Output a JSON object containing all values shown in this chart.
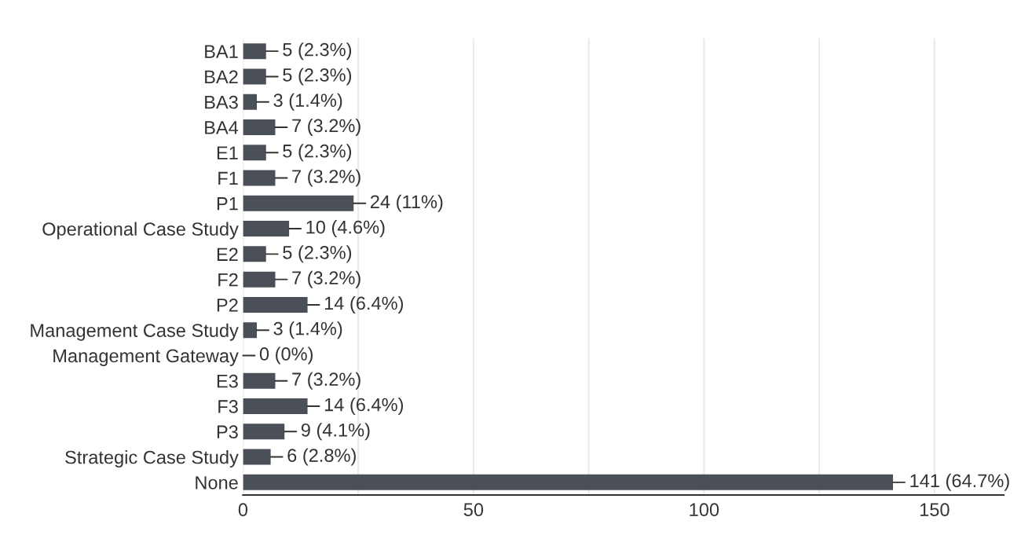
{
  "chart_data": {
    "type": "bar",
    "orientation": "horizontal",
    "categories": [
      "BA1",
      "BA2",
      "BA3",
      "BA4",
      "E1",
      "F1",
      "P1",
      "Operational Case Study",
      "E2",
      "F2",
      "P2",
      "Management Case Study",
      "Management Gateway",
      "E3",
      "F3",
      "P3",
      "Strategic Case Study",
      "None"
    ],
    "values": [
      5,
      5,
      3,
      7,
      5,
      7,
      24,
      10,
      5,
      7,
      14,
      3,
      0,
      7,
      14,
      9,
      6,
      141
    ],
    "value_labels": [
      "5 (2.3%)",
      "5 (2.3%)",
      "3 (1.4%)",
      "7 (3.2%)",
      "5 (2.3%)",
      "7 (3.2%)",
      "24 (11%)",
      "10 (4.6%)",
      "5 (2.3%)",
      "7 (3.2%)",
      "14 (6.4%)",
      "3 (1.4%)",
      "0 (0%)",
      "7 (3.2%)",
      "14 (6.4%)",
      "9 (4.1%)",
      "6 (2.8%)",
      "141 (64.7%)"
    ],
    "color": "#4a4f58",
    "xlim": [
      0,
      165
    ],
    "xticks": [
      0,
      {
        "value": 25,
        "label": null
      },
      50,
      {
        "value": 75,
        "label": null
      },
      100,
      {
        "value": 125,
        "label": null
      },
      150
    ],
    "grid": "x"
  }
}
